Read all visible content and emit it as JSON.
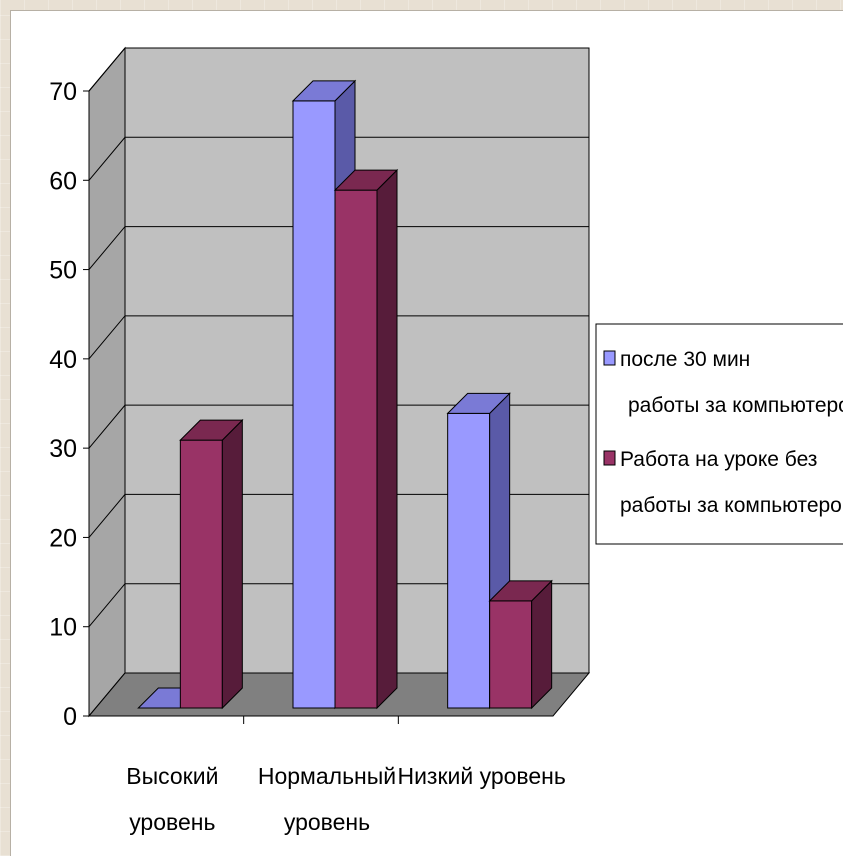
{
  "chart_data": {
    "type": "bar",
    "title": "",
    "xlabel": "",
    "ylabel": "",
    "ylim": [
      0,
      70
    ],
    "yticks": [
      0,
      10,
      20,
      30,
      40,
      50,
      60,
      70
    ],
    "categories": [
      [
        "Высокий",
        "уровень"
      ],
      [
        "Нормальный",
        "уровень"
      ],
      [
        "Низкий уровень"
      ]
    ],
    "series": [
      {
        "name": [
          "после 30 мин",
          "работы за компьютером"
        ],
        "values": [
          0,
          68,
          33
        ],
        "color": "#9999ff",
        "side_color": "#5a5aa8",
        "top_color": "#7a7ad6"
      },
      {
        "name": [
          "Работа на уроке без",
          "работы за компьютером"
        ],
        "values": [
          30,
          58,
          12
        ],
        "color": "#993366",
        "side_color": "#571c3a",
        "top_color": "#7a2850"
      }
    ],
    "grid": true,
    "legend_position": "right",
    "style": "3d-clustered-column",
    "wall_color": "#c0c0c0",
    "floor_color": "#808080"
  }
}
